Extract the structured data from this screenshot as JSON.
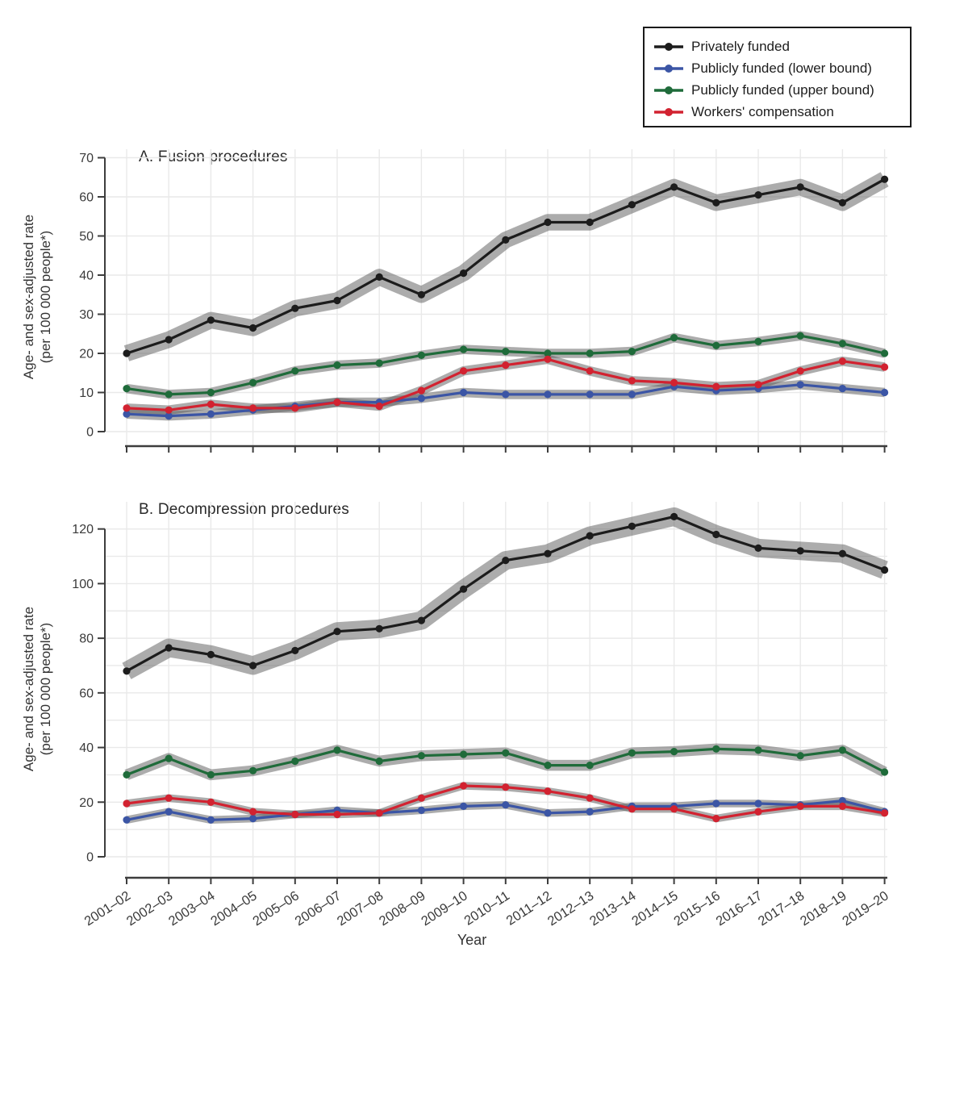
{
  "figure": {
    "xlabel": "Year",
    "ylabel_lines": [
      "Age- and sex-adjusted rate",
      "(per 100 000 people*)"
    ]
  },
  "legend": {
    "position": "top-right",
    "border_color": "#1a1a1a"
  },
  "chart_data": [
    {
      "type": "line",
      "panel": "A",
      "title": "A. Fusion procedures",
      "xlabel": "Year",
      "ylabel": "Age- and sex-adjusted rate (per 100 000 people*)",
      "ylim": [
        0,
        70
      ],
      "yticks": [
        0,
        10,
        20,
        30,
        40,
        50,
        60,
        70
      ],
      "grid": true,
      "ci_band_color": "#a9a9a9",
      "categories": [
        "2001–02",
        "2002–03",
        "2003–04",
        "2004–05",
        "2005–06",
        "2006–07",
        "2007–08",
        "2008–09",
        "2009–10",
        "2010–11",
        "2011–12",
        "2012–13",
        "2013–14",
        "2014–15",
        "2015–16",
        "2016–17",
        "2017–18",
        "2018–19",
        "2019–20"
      ],
      "series": [
        {
          "id": "privately-funded",
          "name": "Privately funded",
          "color": "#1c1c1c",
          "ci_half": 2.1,
          "values": [
            20,
            23.5,
            28.5,
            26.5,
            31.5,
            33.5,
            39.5,
            35,
            40.5,
            49,
            53.5,
            53.5,
            58,
            62.5,
            58.5,
            60.5,
            62.5,
            58.5,
            64.5
          ]
        },
        {
          "id": "publicly-funded-lower",
          "name": "Publicly funded (lower bound)",
          "color": "#3b55a5",
          "ci_half": 1.2,
          "values": [
            4.5,
            4,
            4.5,
            5.5,
            6.5,
            7.5,
            7.5,
            8.5,
            10,
            9.5,
            9.5,
            9.5,
            9.5,
            11.5,
            10.5,
            11,
            12,
            11,
            10
          ]
        },
        {
          "id": "publicly-funded-upper",
          "name": "Publicly funded (upper bound)",
          "color": "#1f6b3a",
          "ci_half": 1.2,
          "values": [
            11,
            9.5,
            10,
            12.5,
            15.5,
            17,
            17.5,
            19.5,
            21,
            20.5,
            20,
            20,
            20.5,
            24,
            22,
            23,
            24.5,
            22.5,
            20
          ]
        },
        {
          "id": "workers-compensation",
          "name": "Workers' compensation",
          "color": "#d22230",
          "ci_half": 1.2,
          "values": [
            6,
            5.5,
            7,
            6,
            6,
            7.5,
            6.5,
            10.5,
            15.5,
            17,
            18.5,
            15.5,
            13,
            12.5,
            11.5,
            12,
            15.5,
            18,
            16.5
          ]
        }
      ]
    },
    {
      "type": "line",
      "panel": "B",
      "title": "B. Decompression procedures",
      "xlabel": "Year",
      "ylabel": "Age- and sex-adjusted rate (per 100 000 people*)",
      "ylim": [
        0,
        120
      ],
      "yticks": [
        0,
        20,
        40,
        60,
        80,
        100,
        120
      ],
      "grid": true,
      "ci_band_color": "#a9a9a9",
      "categories": [
        "2001–02",
        "2002–03",
        "2003–04",
        "2004–05",
        "2005–06",
        "2006–07",
        "2007–08",
        "2008–09",
        "2009–10",
        "2010–11",
        "2011–12",
        "2012–13",
        "2013–14",
        "2014–15",
        "2015–16",
        "2016–17",
        "2017–18",
        "2018–19",
        "2019–20"
      ],
      "series": [
        {
          "id": "privately-funded",
          "name": "Privately funded",
          "color": "#1c1c1c",
          "ci_half": 3.4,
          "values": [
            68,
            76.5,
            74,
            70,
            75.5,
            82.5,
            83.5,
            86.5,
            98,
            108.5,
            111,
            117.5,
            121,
            124.5,
            118,
            113,
            112,
            111,
            105
          ]
        },
        {
          "id": "publicly-funded-lower",
          "name": "Publicly funded (lower bound)",
          "color": "#3b55a5",
          "ci_half": 1.4,
          "values": [
            13.5,
            16.5,
            13.5,
            14,
            15.5,
            17,
            16,
            17,
            18.5,
            19,
            16,
            16.5,
            18.5,
            18.5,
            19.5,
            19.5,
            19,
            20.5,
            16.5
          ]
        },
        {
          "id": "publicly-funded-upper",
          "name": "Publicly funded (upper bound)",
          "color": "#1f6b3a",
          "ci_half": 2.0,
          "values": [
            30,
            36,
            30,
            31.5,
            35,
            39,
            35,
            37,
            37.5,
            38,
            33.5,
            33.5,
            38,
            38.5,
            39.5,
            39,
            37,
            39,
            31
          ]
        },
        {
          "id": "workers-compensation",
          "name": "Workers' compensation",
          "color": "#d22230",
          "ci_half": 1.4,
          "values": [
            19.5,
            21.5,
            20,
            16.5,
            15.5,
            15.5,
            16,
            21.5,
            26,
            25.5,
            24,
            21.5,
            17.5,
            17.5,
            14,
            16.5,
            18.5,
            18.5,
            16
          ]
        }
      ]
    }
  ]
}
